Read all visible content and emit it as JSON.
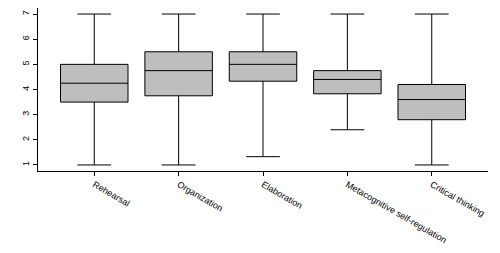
{
  "chart_data": {
    "type": "box",
    "categories": [
      "Rehearsal",
      "Organization",
      "Elaboration",
      "Metacognitive self-regulation",
      "Critical thinking"
    ],
    "lower_whisker": [
      1,
      1,
      1.33,
      2.4,
      1
    ],
    "q1": [
      3.5,
      3.75,
      4.33,
      3.83,
      2.8
    ],
    "median": [
      4.25,
      4.75,
      5.0,
      4.4,
      3.6
    ],
    "q3": [
      5.0,
      5.5,
      5.5,
      4.75,
      4.2
    ],
    "upper_whisker": [
      7,
      7,
      7,
      7,
      7
    ],
    "color": "#bebebe",
    "ylim": [
      0.76,
      7.24
    ],
    "yticks": [
      1,
      2,
      3,
      4,
      5,
      6,
      7
    ],
    "grid": false
  }
}
